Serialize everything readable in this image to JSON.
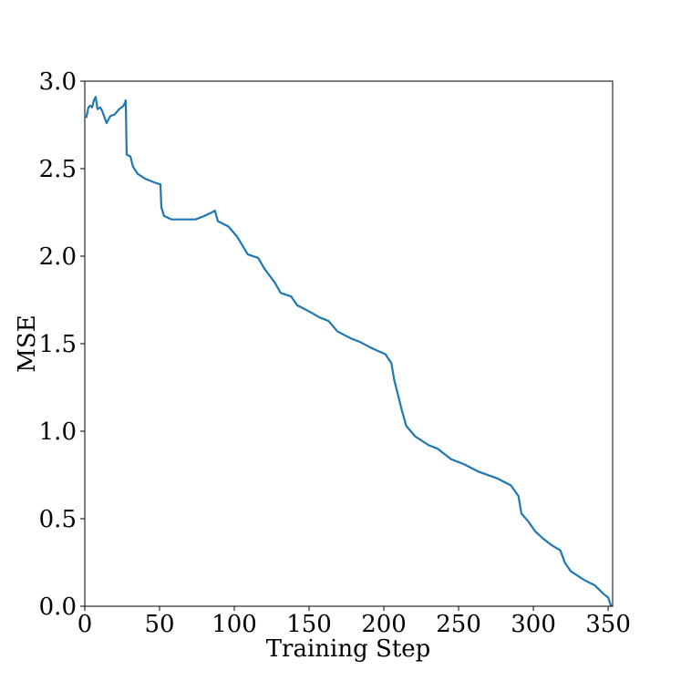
{
  "chart_data": {
    "type": "line",
    "xlabel": "Training Step",
    "ylabel": "MSE",
    "xlim": [
      0,
      353
    ],
    "ylim": [
      0,
      3
    ],
    "xticks": [
      0,
      50,
      100,
      150,
      200,
      250,
      300,
      350
    ],
    "yticks": [
      {
        "value": 0,
        "label": "0.0"
      },
      {
        "value": 0.5,
        "label": "0.5"
      },
      {
        "value": 1,
        "label": "1.0"
      },
      {
        "value": 1.5,
        "label": "1.5"
      },
      {
        "value": 2,
        "label": "2.0"
      },
      {
        "value": 2.5,
        "label": "2.5"
      },
      {
        "value": 3,
        "label": "3.0"
      }
    ],
    "series": [
      {
        "color": "#1f77b4",
        "x": [
          1,
          2.4,
          3.7,
          4.9,
          6.1,
          7.3,
          8.5,
          10.4,
          11.6,
          14.6,
          17,
          20,
          23,
          26,
          27.4,
          28,
          30.5,
          32.3,
          35.4,
          41,
          47,
          50.6,
          51.2,
          53,
          58,
          65,
          74,
          80,
          85,
          87,
          89,
          96,
          102,
          109,
          116,
          120,
          127,
          131,
          138,
          142,
          151,
          157,
          163,
          169,
          178,
          184,
          193,
          201,
          205,
          207,
          210,
          212,
          215,
          221,
          230,
          236,
          245,
          254,
          263,
          276,
          285,
          290,
          292,
          297,
          301,
          306,
          312,
          318,
          321,
          325,
          334,
          341,
          347,
          350,
          352
        ],
        "values": [
          2.79,
          2.85,
          2.86,
          2.85,
          2.89,
          2.91,
          2.84,
          2.85,
          2.83,
          2.76,
          2.8,
          2.81,
          2.84,
          2.86,
          2.89,
          2.58,
          2.57,
          2.51,
          2.47,
          2.44,
          2.42,
          2.41,
          2.28,
          2.23,
          2.21,
          2.21,
          2.21,
          2.23,
          2.25,
          2.26,
          2.2,
          2.17,
          2.11,
          2.01,
          1.99,
          1.93,
          1.85,
          1.79,
          1.77,
          1.72,
          1.68,
          1.65,
          1.63,
          1.57,
          1.53,
          1.51,
          1.47,
          1.44,
          1.39,
          1.29,
          1.19,
          1.12,
          1.03,
          0.97,
          0.92,
          0.9,
          0.84,
          0.81,
          0.77,
          0.73,
          0.69,
          0.63,
          0.53,
          0.48,
          0.43,
          0.39,
          0.35,
          0.32,
          0.25,
          0.2,
          0.15,
          0.12,
          0.07,
          0.05,
          0
        ]
      }
    ]
  }
}
